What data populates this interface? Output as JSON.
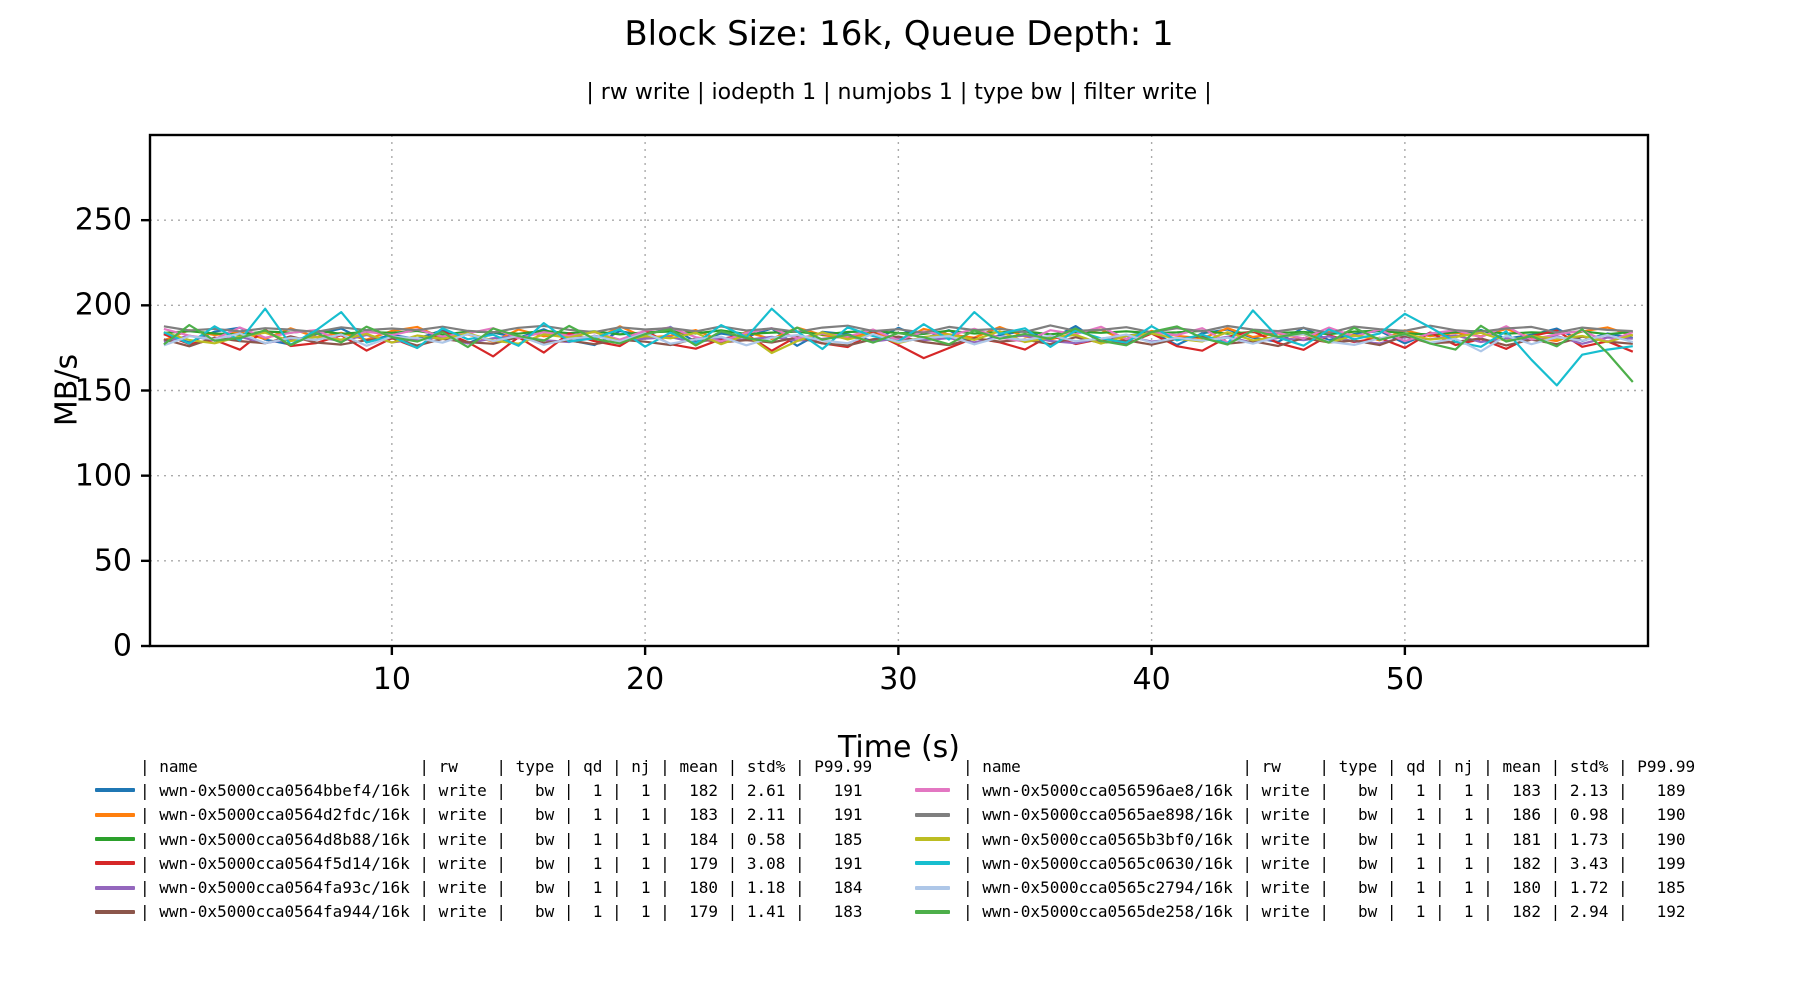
{
  "title": "Block Size: 16k, Queue Depth: 1",
  "subtitle": "| rw write | iodepth 1 | numjobs 1 | type bw | filter write |",
  "chart_data": {
    "type": "line",
    "title": "Block Size: 16k, Queue Depth: 1",
    "subtitle": "| rw write | iodepth 1 | numjobs 1 | type bw | filter write |",
    "xlabel": "Time (s)",
    "ylabel": "MB/s",
    "xlim": [
      0.45,
      59.6
    ],
    "ylim": [
      0,
      300
    ],
    "xticks": [
      10,
      20,
      30,
      40,
      50
    ],
    "yticks": [
      0,
      50,
      100,
      150,
      200,
      250
    ],
    "grid": "dotted",
    "grid_color": "#aaaaaa",
    "x_start": 1,
    "x_end": 59,
    "x_step": 1,
    "jitter_pattern": [
      0.32,
      -0.81,
      0.54,
      1.02,
      -0.44,
      -1.05,
      0.21,
      0.93,
      -0.62,
      0.11,
      -0.35,
      0.72,
      -0.91,
      0.42,
      -0.22,
      0.83,
      -0.52,
      -1.12,
      0.61,
      0.02,
      1.13,
      -0.73,
      0.31,
      -0.12,
      0.92,
      -1.21,
      0.52,
      0.22,
      -0.63,
      1.01,
      -0.32,
      0.71,
      -1.02,
      0.12,
      0.62,
      -0.42,
      1.22,
      -0.82,
      0.01,
      0.52,
      -1.11,
      0.33,
      0.81,
      -0.21,
      -0.72,
      1.03,
      -0.51,
      0.23,
      0.63,
      -0.92,
      0.41,
      -0.13,
      0.73,
      -0.33,
      0.13,
      0.91,
      -0.61,
      0.31,
      -0.23
    ],
    "series": [
      {
        "name": "wwn-0x5000cca0564bbef4/16k",
        "rw": "write",
        "type": "bw",
        "qd": 1,
        "nj": 1,
        "mean": 182,
        "std_pct": 2.61,
        "p9999": 191,
        "color": "#1f77b4",
        "rot": 0,
        "flip": 1,
        "overrides": {}
      },
      {
        "name": "wwn-0x5000cca0564d2fdc/16k",
        "rw": "write",
        "type": "bw",
        "qd": 1,
        "nj": 1,
        "mean": 183,
        "std_pct": 2.11,
        "p9999": 191,
        "color": "#ff7f0e",
        "rot": 7,
        "flip": -1,
        "overrides": {}
      },
      {
        "name": "wwn-0x5000cca0564d8b88/16k",
        "rw": "write",
        "type": "bw",
        "qd": 1,
        "nj": 1,
        "mean": 184,
        "std_pct": 0.58,
        "p9999": 185,
        "color": "#2ca02c",
        "rot": 14,
        "flip": 1,
        "overrides": {}
      },
      {
        "name": "wwn-0x5000cca0564f5d14/16k",
        "rw": "write",
        "type": "bw",
        "qd": 1,
        "nj": 1,
        "mean": 179,
        "std_pct": 3.08,
        "p9999": 191,
        "color": "#d62728",
        "rot": 21,
        "flip": -1,
        "overrides": {
          "14": 170,
          "31": 169
        }
      },
      {
        "name": "wwn-0x5000cca0564fa93c/16k",
        "rw": "write",
        "type": "bw",
        "qd": 1,
        "nj": 1,
        "mean": 180,
        "std_pct": 1.18,
        "p9999": 184,
        "color": "#9467bd",
        "rot": 28,
        "flip": 1,
        "overrides": {}
      },
      {
        "name": "wwn-0x5000cca0564fa944/16k",
        "rw": "write",
        "type": "bw",
        "qd": 1,
        "nj": 1,
        "mean": 179,
        "std_pct": 1.41,
        "p9999": 183,
        "color": "#8c564b",
        "rot": 35,
        "flip": -1,
        "overrides": {}
      },
      {
        "name": "wwn-0x5000cca056596ae8/16k",
        "rw": "write",
        "type": "bw",
        "qd": 1,
        "nj": 1,
        "mean": 183,
        "std_pct": 2.13,
        "p9999": 189,
        "color": "#e377c2",
        "rot": 42,
        "flip": 1,
        "overrides": {}
      },
      {
        "name": "wwn-0x5000cca0565ae898/16k",
        "rw": "write",
        "type": "bw",
        "qd": 1,
        "nj": 1,
        "mean": 186,
        "std_pct": 0.98,
        "p9999": 190,
        "color": "#7f7f7f",
        "rot": 49,
        "flip": -1,
        "overrides": {}
      },
      {
        "name": "wwn-0x5000cca0565b3bf0/16k",
        "rw": "write",
        "type": "bw",
        "qd": 1,
        "nj": 1,
        "mean": 181,
        "std_pct": 1.73,
        "p9999": 190,
        "color": "#bcbd22",
        "rot": 3,
        "flip": 1,
        "overrides": {
          "25": 172
        }
      },
      {
        "name": "wwn-0x5000cca0565c0630/16k",
        "rw": "write",
        "type": "bw",
        "qd": 1,
        "nj": 1,
        "mean": 182,
        "std_pct": 3.43,
        "p9999": 199,
        "color": "#17becf",
        "rot": 10,
        "flip": -1,
        "overrides": {
          "5": 198,
          "8": 196,
          "25": 198,
          "33": 196,
          "44": 197,
          "50": 195,
          "55": 168,
          "56": 153,
          "57": 171,
          "58": 174,
          "59": 176
        }
      },
      {
        "name": "wwn-0x5000cca0565c2794/16k",
        "rw": "write",
        "type": "bw",
        "qd": 1,
        "nj": 1,
        "mean": 180,
        "std_pct": 1.72,
        "p9999": 185,
        "color": "#aec7e8",
        "rot": 17,
        "flip": 1,
        "overrides": {
          "53": 173
        }
      },
      {
        "name": "wwn-0x5000cca0565de258/16k",
        "rw": "write",
        "type": "bw",
        "qd": 1,
        "nj": 1,
        "mean": 182,
        "std_pct": 2.94,
        "p9999": 192,
        "color": "#4daf4a",
        "rot": 24,
        "flip": -1,
        "overrides": {
          "52": 174,
          "58": 172,
          "59": 155
        }
      }
    ]
  },
  "legend": {
    "headers": {
      "name": "name",
      "rw": "rw",
      "type": "type",
      "qd": "qd",
      "nj": "nj",
      "mean": "mean",
      "std": "std%",
      "p99": "P99.99"
    },
    "left_series_indices": [
      0,
      1,
      2,
      3,
      4,
      5
    ],
    "right_series_indices": [
      6,
      7,
      8,
      9,
      10,
      11
    ]
  }
}
